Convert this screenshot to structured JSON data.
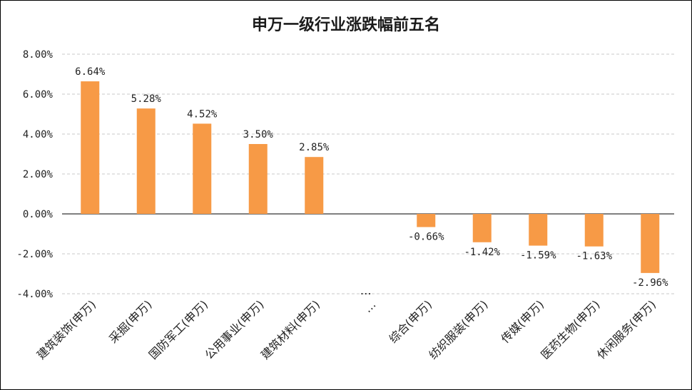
{
  "chart_data": {
    "type": "bar",
    "title": "申万一级行业涨跌幅前五名",
    "xlabel": "",
    "ylabel": "",
    "categories": [
      "建筑装饰(申万)",
      "采掘(申万)",
      "国防军工(申万)",
      "公用事业(申万)",
      "建筑材料(申万)",
      "…",
      "综合(申万)",
      "纺织服装(申万)",
      "传媒(申万)",
      "医药生物(申万)",
      "休闲服务(申万)"
    ],
    "values": [
      6.64,
      5.28,
      4.52,
      3.5,
      2.85,
      null,
      -0.66,
      -1.42,
      -1.59,
      -1.63,
      -2.96
    ],
    "data_labels": [
      "6.64%",
      "5.28%",
      "4.52%",
      "3.50%",
      "2.85%",
      "",
      "-0.66%",
      "-1.42%",
      "-1.59%",
      "-1.63%",
      "-2.96%"
    ],
    "gap_marker": "…",
    "ylim": [
      -4,
      8
    ],
    "yticks": [
      -4,
      -2,
      0,
      2,
      4,
      6,
      8
    ],
    "ytick_labels": [
      "-4.00%",
      "-2.00%",
      "0.00%",
      "2.00%",
      "4.00%",
      "6.00%",
      "8.00%"
    ],
    "grid": true,
    "legend": "none",
    "bar_color": "#F79A46"
  }
}
